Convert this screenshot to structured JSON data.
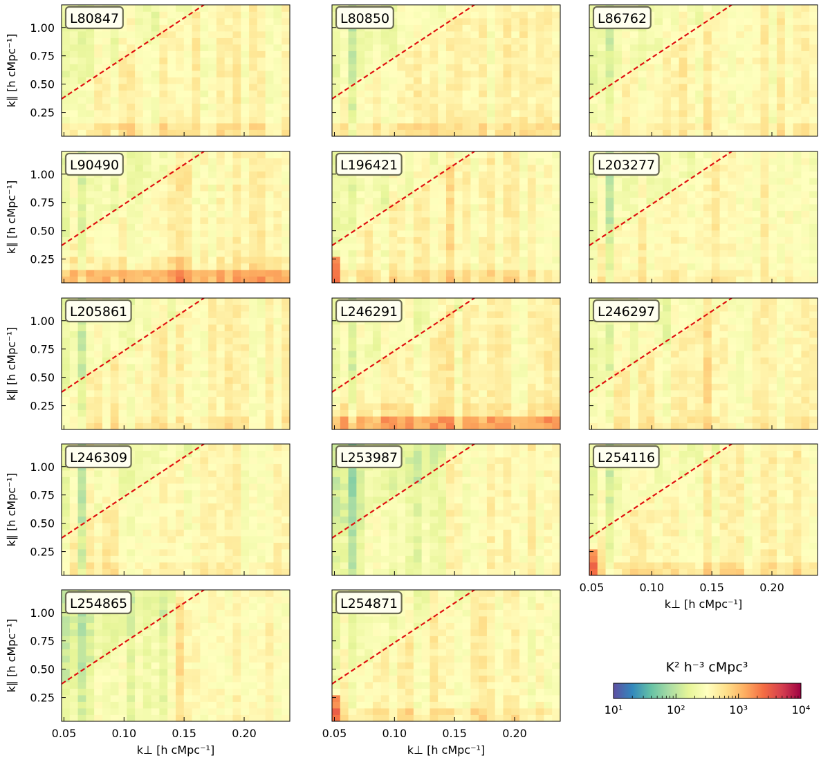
{
  "chart_data": {
    "type": "heatmap",
    "title": "",
    "xlabel": "k⊥ [h cMpc⁻¹]",
    "ylabel": "k∥ [h cMpc⁻¹]",
    "xlim": [
      0.048,
      0.238
    ],
    "ylim": [
      0.04,
      1.2
    ],
    "x_ticks": [
      "0.05",
      "0.10",
      "0.15",
      "0.20"
    ],
    "x_tick_values": [
      0.05,
      0.1,
      0.15,
      0.2
    ],
    "y_ticks": [
      "1.00",
      "0.75",
      "0.50",
      "0.25"
    ],
    "y_tick_values": [
      1.0,
      0.75,
      0.5,
      0.25
    ],
    "wedge_line": {
      "x": [
        0.048,
        0.238
      ],
      "y": [
        0.37,
        1.7
      ],
      "style": "red dashed"
    },
    "colorbar": {
      "label": "K² h⁻³ cMpc³",
      "scale": "log",
      "ticks": [
        "10¹",
        "10²",
        "10³",
        "10⁴"
      ],
      "tick_values": [
        10,
        100,
        1000,
        10000
      ],
      "colormap": "Spectral_r"
    },
    "panels": [
      {
        "id": "L80847",
        "pattern": "low_band"
      },
      {
        "id": "L80850",
        "pattern": "low_band"
      },
      {
        "id": "L86762",
        "pattern": "mild"
      },
      {
        "id": "L90490",
        "pattern": "strong_band"
      },
      {
        "id": "L196421",
        "pattern": "corner_hot"
      },
      {
        "id": "L203277",
        "pattern": "mild"
      },
      {
        "id": "L205861",
        "pattern": "mild"
      },
      {
        "id": "L246291",
        "pattern": "strong_band"
      },
      {
        "id": "L246297",
        "pattern": "mild"
      },
      {
        "id": "L246309",
        "pattern": "mild"
      },
      {
        "id": "L253987",
        "pattern": "cool"
      },
      {
        "id": "L254116",
        "pattern": "corner_hot"
      },
      {
        "id": "L254865",
        "pattern": "cool"
      },
      {
        "id": "L254871",
        "pattern": "corner_hot"
      }
    ]
  }
}
